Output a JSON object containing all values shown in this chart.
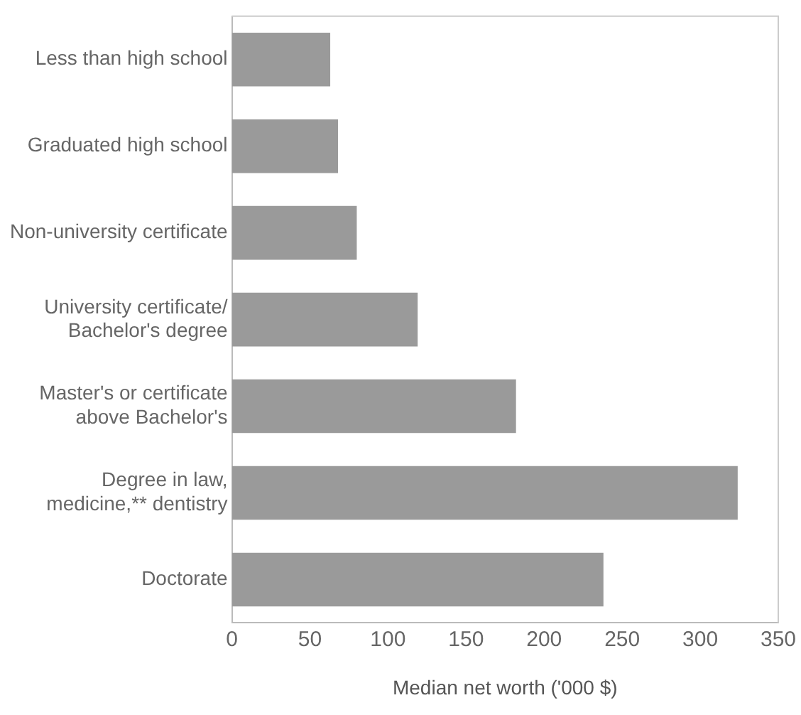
{
  "chart_data": {
    "type": "bar",
    "orientation": "horizontal",
    "xlabel": "Median net worth ('000 $)",
    "categories": [
      "Less than high school",
      "Graduated high school",
      "Non-university certificate",
      "University certificate/\nBachelor's degree",
      "Master's or certificate\nabove Bachelor's",
      "Degree in law,\nmedicine,** dentistry",
      "Doctorate"
    ],
    "values": [
      63,
      68,
      80,
      119,
      182,
      324,
      238
    ],
    "color": "#9a9a9a",
    "xlim": [
      0,
      350
    ],
    "xticks": [
      0,
      50,
      100,
      150,
      200,
      250,
      300,
      350
    ],
    "grid": false
  }
}
